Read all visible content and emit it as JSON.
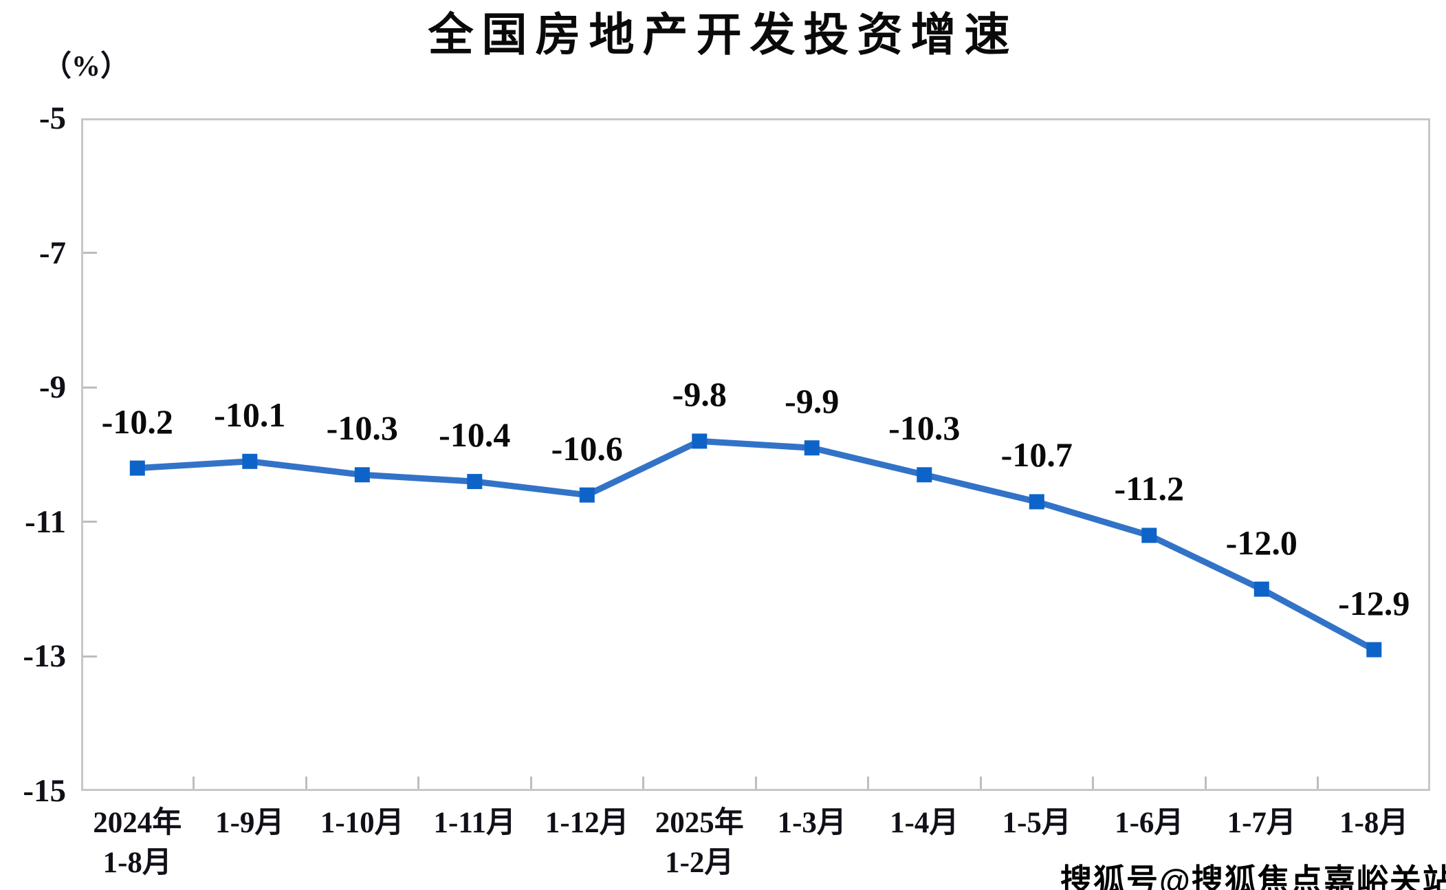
{
  "page": {
    "watermark": "搜狐号@搜狐焦点嘉峪关站"
  },
  "chart_data": {
    "type": "line",
    "title": "全国房地产开发投资增速",
    "unit_label": "（%）",
    "categories": [
      [
        "2024年",
        "1-8月"
      ],
      [
        "1-9月"
      ],
      [
        "1-10月"
      ],
      [
        "1-11月"
      ],
      [
        "1-12月"
      ],
      [
        "2025年",
        "1-2月"
      ],
      [
        "1-3月"
      ],
      [
        "1-4月"
      ],
      [
        "1-5月"
      ],
      [
        "1-6月"
      ],
      [
        "1-7月"
      ],
      [
        "1-8月"
      ]
    ],
    "series": [
      {
        "name": "全国房地产开发投资增速",
        "values": [
          -10.2,
          -10.1,
          -10.3,
          -10.4,
          -10.6,
          -9.8,
          -9.9,
          -10.3,
          -10.7,
          -11.2,
          -12.0,
          -12.9
        ],
        "data_labels": [
          "-10.2",
          "-10.1",
          "-10.3",
          "-10.4",
          "-10.6",
          "-9.8",
          "-9.9",
          "-10.3",
          "-10.7",
          "-11.2",
          "-12.0",
          "-12.9"
        ]
      }
    ],
    "y_ticks": [
      "-5",
      "-7",
      "-9",
      "-11",
      "-13",
      "-15"
    ],
    "ylim": [
      -15,
      -5
    ],
    "xlabel": "",
    "ylabel": "（%）",
    "grid": false,
    "legend": false,
    "line_color": "#3273C8",
    "marker_color": "#0D63C8",
    "marker_shape": "square"
  }
}
